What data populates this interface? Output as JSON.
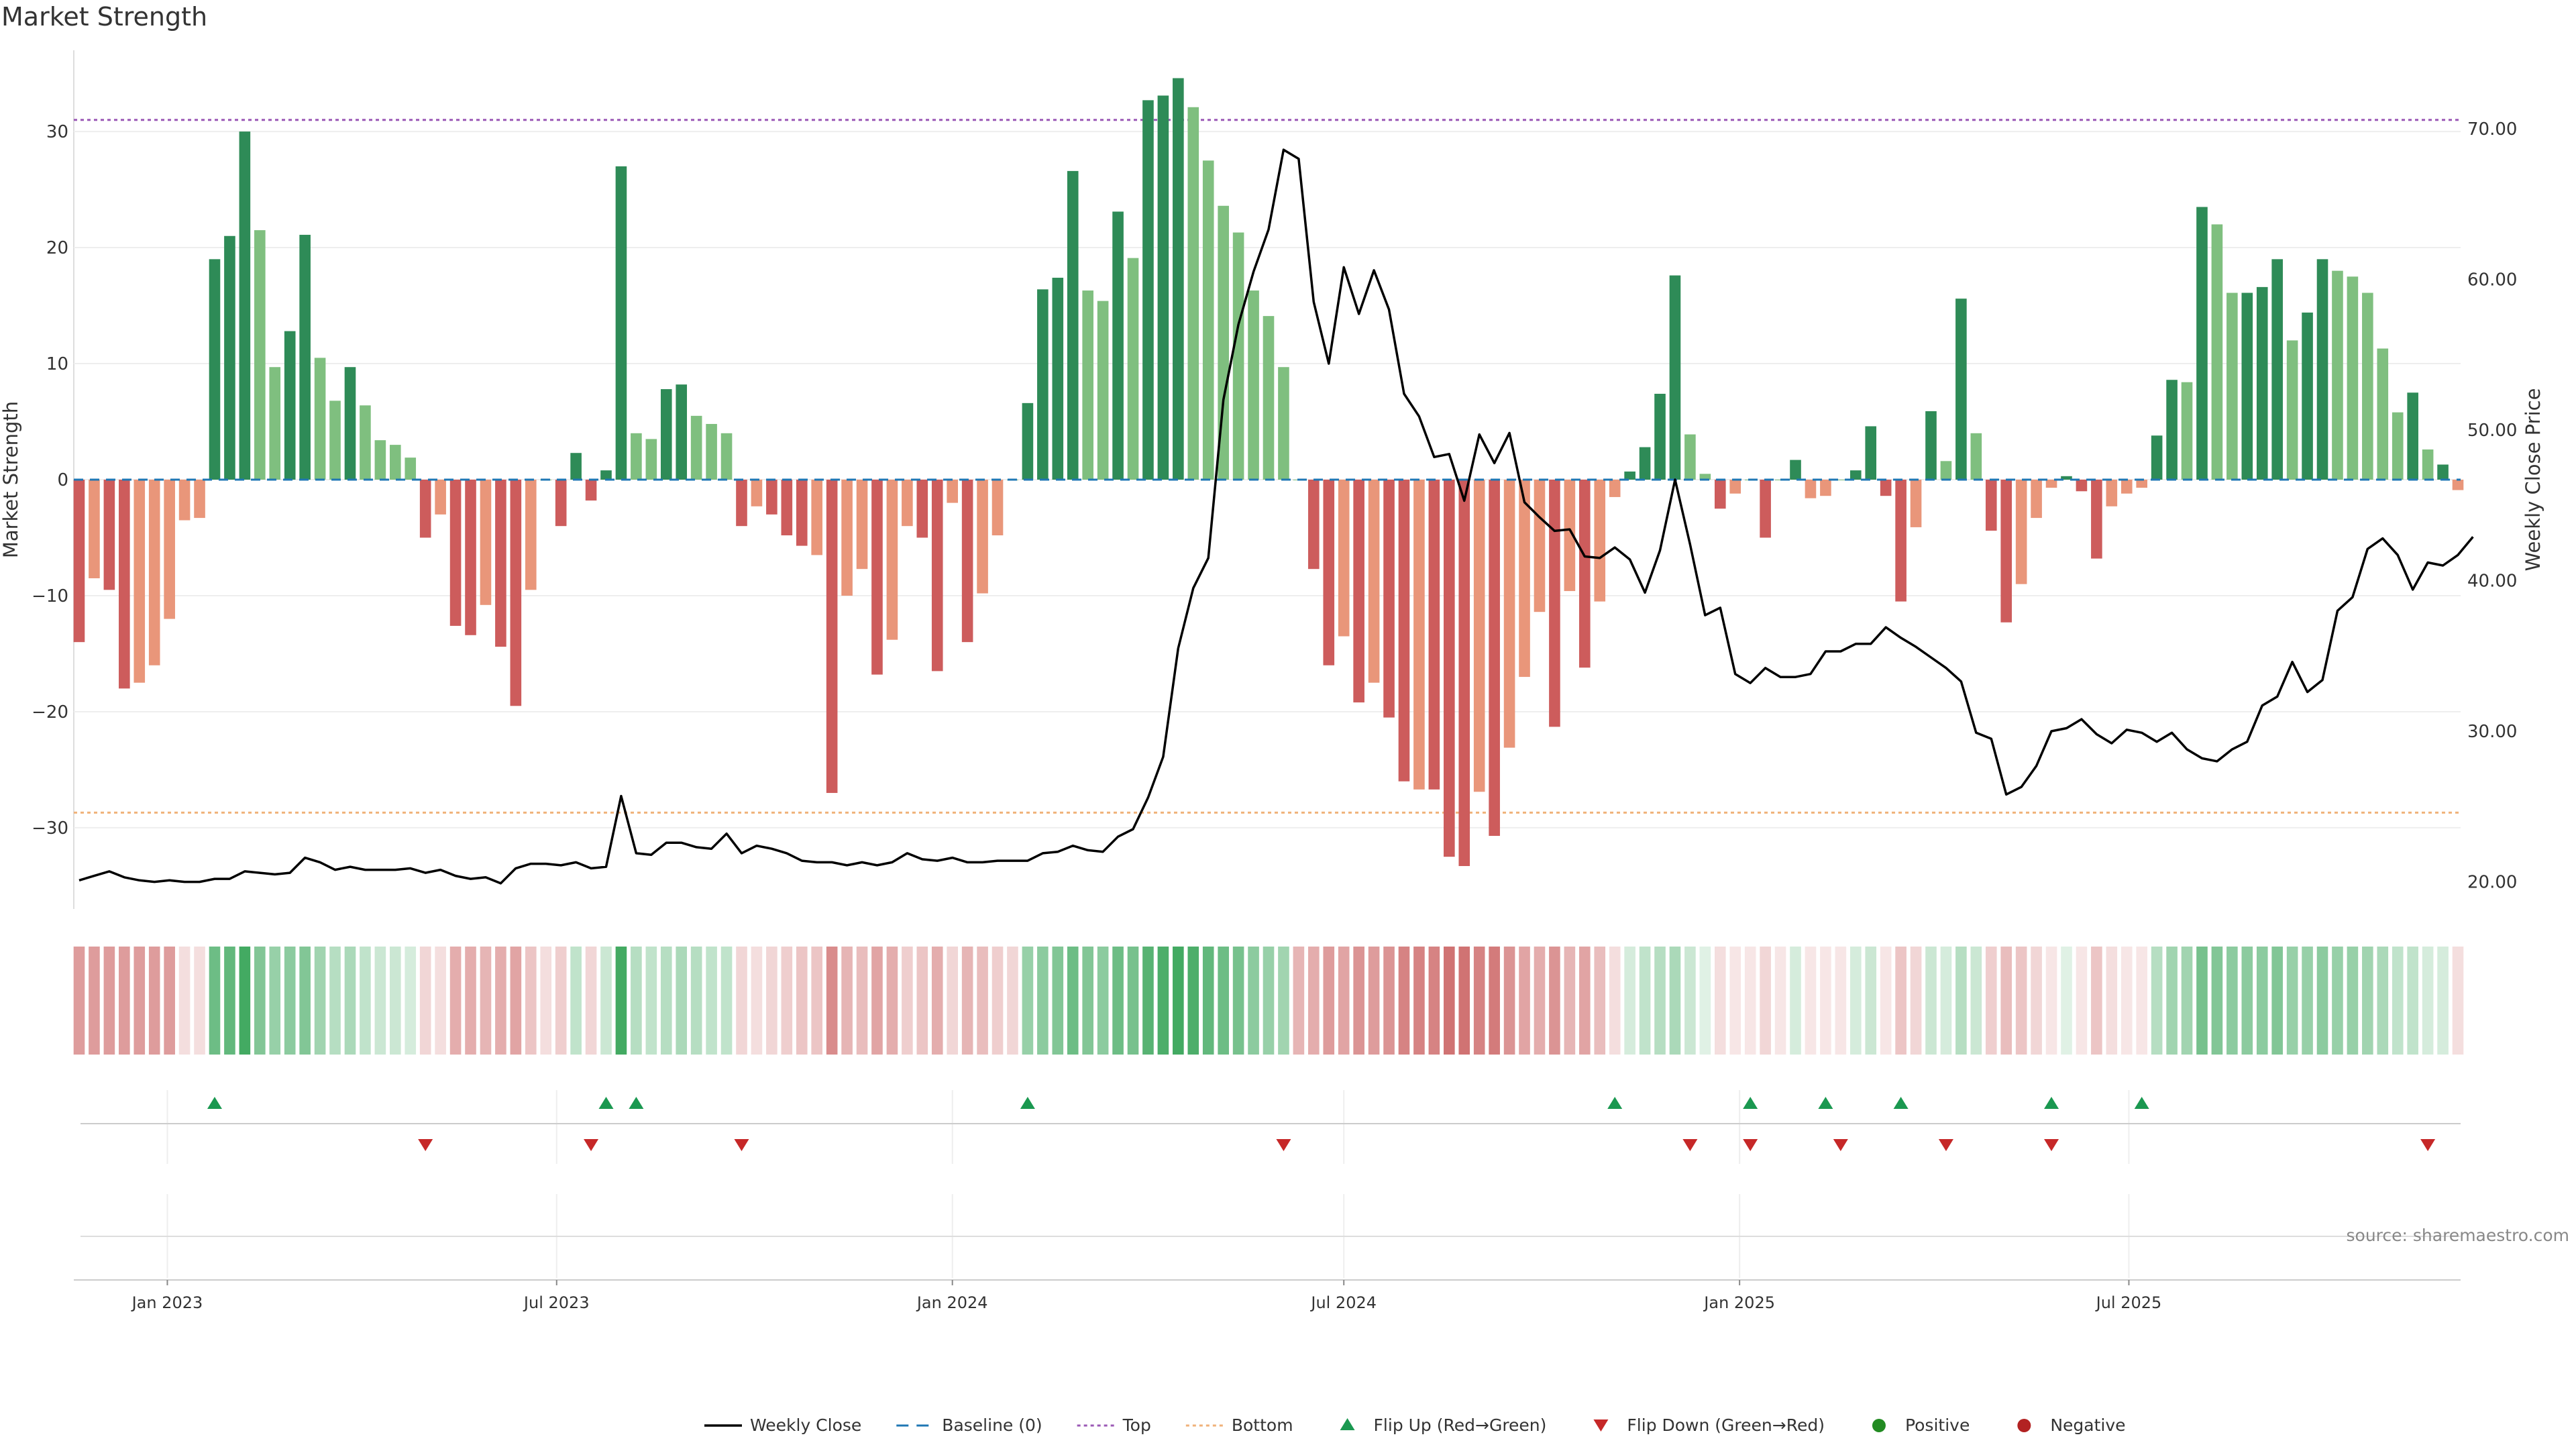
{
  "title": "Market Strength",
  "source": "source: sharemaestro.com",
  "colors": {
    "strong_green": "#2e8b57",
    "light_green": "#7fbf7f",
    "strong_red": "#cd5c5c",
    "light_red": "#e9967a",
    "baseline": "#1f77b4",
    "top": "#9b59b6",
    "bottom": "#f0b27a",
    "flip_up": "#1a9850",
    "flip_down": "#c62828",
    "positive": "#228b22",
    "negative": "#b22222",
    "price": "#000000"
  },
  "chart_data": {
    "type": "bar",
    "title": "Market Strength",
    "ylabel": "Market Strength",
    "y2label": "Weekly Close Price",
    "ylim": [
      -37,
      37
    ],
    "y2lim": [
      18.2,
      75.2
    ],
    "yticks": [
      -30,
      -20,
      -10,
      0,
      10,
      20,
      30
    ],
    "ytick_labels": [
      "−30",
      "−20",
      "−10",
      "0",
      "10",
      "20",
      "30"
    ],
    "y2ticks": [
      20,
      30,
      40,
      50,
      60,
      70
    ],
    "y2tick_labels": [
      "20.00",
      "30.00",
      "40.00",
      "50.00",
      "60.00",
      "70.00"
    ],
    "top_line": 31,
    "bottom_line": -28.7,
    "x_start": "2022-11-21",
    "week_step_days": 7,
    "xticks": [
      {
        "label": "Jan 2023",
        "date": "2023-01-01"
      },
      {
        "label": "Jul 2023",
        "date": "2023-07-01"
      },
      {
        "label": "Jan 2024",
        "date": "2024-01-01"
      },
      {
        "label": "Jul 2024",
        "date": "2024-07-01"
      },
      {
        "label": "Jan 2025",
        "date": "2025-01-01"
      },
      {
        "label": "Jul 2025",
        "date": "2025-07-01"
      }
    ],
    "strength": [
      -14,
      -8.5,
      -9.5,
      -18,
      -17.5,
      -16,
      -12,
      -3.5,
      -3.3,
      19,
      21,
      30,
      21.5,
      9.7,
      12.8,
      21.1,
      10.5,
      6.8,
      9.7,
      6.4,
      3.4,
      3,
      1.9,
      -5,
      -3,
      -12.6,
      -13.4,
      -10.8,
      -14.4,
      -19.5,
      -9.5,
      0,
      -4,
      2.3,
      -1.8,
      0.8,
      27,
      4,
      3.5,
      7.8,
      8.2,
      5.5,
      4.8,
      4,
      -4,
      -2.3,
      -3,
      -4.8,
      -5.7,
      -6.5,
      -27,
      -10,
      -7.7,
      -16.8,
      -13.8,
      -4,
      -5,
      -16.5,
      -2,
      -14,
      -9.8,
      -4.8,
      0,
      6.6,
      16.4,
      17.4,
      26.6,
      16.3,
      15.4,
      23.1,
      19.1,
      32.7,
      33.1,
      34.6,
      32.1,
      27.5,
      23.6,
      21.3,
      16.3,
      14.1,
      9.7,
      0,
      -7.7,
      -16,
      -13.5,
      -19.2,
      -17.5,
      -20.5,
      -26,
      -26.7,
      -26.7,
      -32.5,
      -33.3,
      -26.9,
      -30.7,
      -23.1,
      -17,
      -11.4,
      -21.3,
      -9.6,
      -16.2,
      -10.5,
      -1.5,
      0.7,
      2.8,
      7.4,
      17.6,
      3.9,
      0.5,
      -2.5,
      -1.2,
      0,
      -5,
      0,
      1.7,
      -1.6,
      -1.4,
      0,
      0.8,
      4.6,
      -1.4,
      -10.5,
      -4.1,
      5.9,
      1.6,
      15.6,
      4,
      -4.4,
      -12.3,
      -9,
      -3.3,
      -0.7,
      0.3,
      -1,
      -6.8,
      -2.3,
      -1.2,
      -0.7,
      3.8,
      8.6,
      8.4,
      23.5,
      22,
      16.1,
      16.1,
      16.6,
      19,
      12,
      14.4,
      19,
      18,
      17.5,
      16.1,
      11.3,
      5.8,
      7.5,
      2.6,
      1.3,
      -0.9
    ],
    "strength_shade": [
      "strong",
      "light",
      "strong",
      "strong",
      "light",
      "light",
      "light",
      "light",
      "light",
      "strong",
      "strong",
      "strong",
      "light",
      "light",
      "strong",
      "strong",
      "light",
      "light",
      "strong",
      "light",
      "light",
      "light",
      "light",
      "strong",
      "light",
      "strong",
      "strong",
      "light",
      "strong",
      "strong",
      "light",
      "light",
      "strong",
      "strong",
      "strong",
      "strong",
      "strong",
      "light",
      "light",
      "strong",
      "strong",
      "light",
      "light",
      "light",
      "strong",
      "light",
      "strong",
      "strong",
      "strong",
      "light",
      "strong",
      "light",
      "light",
      "strong",
      "light",
      "light",
      "strong",
      "strong",
      "light",
      "strong",
      "light",
      "light",
      "light",
      "strong",
      "strong",
      "strong",
      "strong",
      "light",
      "light",
      "strong",
      "light",
      "strong",
      "strong",
      "strong",
      "light",
      "light",
      "light",
      "light",
      "light",
      "light",
      "light",
      "light",
      "strong",
      "strong",
      "light",
      "strong",
      "light",
      "strong",
      "strong",
      "light",
      "strong",
      "strong",
      "strong",
      "light",
      "strong",
      "light",
      "light",
      "light",
      "strong",
      "light",
      "strong",
      "light",
      "light",
      "strong",
      "strong",
      "strong",
      "strong",
      "light",
      "light",
      "strong",
      "light",
      "light",
      "strong",
      "light",
      "strong",
      "light",
      "light",
      "light",
      "strong",
      "strong",
      "strong",
      "strong",
      "light",
      "strong",
      "light",
      "strong",
      "light",
      "strong",
      "strong",
      "light",
      "light",
      "light",
      "strong",
      "strong",
      "strong",
      "light",
      "light",
      "light",
      "strong",
      "strong",
      "light",
      "strong",
      "light",
      "light",
      "strong",
      "strong",
      "strong",
      "light",
      "strong",
      "strong",
      "light",
      "light",
      "light",
      "light",
      "light",
      "strong",
      "light",
      "strong"
    ],
    "price": [
      20.1,
      20.4,
      20.7,
      20.3,
      20.1,
      20,
      20.1,
      20,
      20,
      20.2,
      20.2,
      20.7,
      20.6,
      20.5,
      20.6,
      21.6,
      21.3,
      20.8,
      21,
      20.8,
      20.8,
      20.8,
      20.9,
      20.6,
      20.8,
      20.4,
      20.2,
      20.3,
      19.9,
      20.9,
      21.2,
      21.2,
      21.1,
      21.3,
      20.9,
      21,
      25.7,
      21.9,
      21.8,
      22.6,
      22.6,
      22.3,
      22.2,
      23.2,
      21.9,
      22.4,
      22.2,
      21.9,
      21.4,
      21.3,
      21.3,
      21.1,
      21.3,
      21.1,
      21.3,
      21.9,
      21.5,
      21.4,
      21.6,
      21.3,
      21.3,
      21.4,
      21.4,
      21.4,
      21.9,
      22,
      22.4,
      22.1,
      22,
      23,
      23.5,
      25.6,
      28.3,
      35.5,
      39.5,
      41.5,
      52,
      57,
      60.5,
      63.3,
      68.6,
      68,
      58.5,
      54.4,
      60.8,
      57.7,
      60.6,
      58,
      52.4,
      50.9,
      48.2,
      48.4,
      45.3,
      49.7,
      47.8,
      49.8,
      45.2,
      44.2,
      43.3,
      43.4,
      41.6,
      41.5,
      42.2,
      41.4,
      39.2,
      42,
      46.7,
      42.4,
      37.7,
      38.2,
      33.8,
      33.2,
      34.2,
      33.6,
      33.6,
      33.8,
      35.3,
      35.3,
      35.8,
      35.8,
      36.9,
      36.2,
      35.6,
      34.9,
      34.2,
      33.3,
      29.9,
      29.5,
      25.8,
      26.3,
      27.7,
      30,
      30.2,
      30.8,
      29.8,
      29.2,
      30.1,
      29.9,
      29.3,
      29.9,
      28.8,
      28.2,
      28,
      28.8,
      29.3,
      31.7,
      32.3,
      34.6,
      32.6,
      33.4,
      38,
      38.9,
      42.1,
      42.8,
      41.7,
      39.4,
      41.2,
      41,
      41.7,
      42.9
    ],
    "heat_strip": [
      -0.6,
      -0.6,
      -0.6,
      -0.6,
      -0.6,
      -0.6,
      -0.6,
      -0.2,
      -0.2,
      0.7,
      0.75,
      0.9,
      0.6,
      0.5,
      0.55,
      0.6,
      0.45,
      0.35,
      0.4,
      0.3,
      0.25,
      0.25,
      0.2,
      -0.25,
      -0.2,
      -0.5,
      -0.5,
      -0.45,
      -0.5,
      -0.55,
      -0.35,
      -0.2,
      -0.3,
      0.3,
      -0.25,
      0.25,
      0.9,
      0.35,
      0.3,
      0.35,
      0.4,
      0.35,
      0.3,
      0.3,
      -0.25,
      -0.2,
      -0.25,
      -0.3,
      -0.35,
      -0.35,
      -0.7,
      -0.45,
      -0.4,
      -0.55,
      -0.5,
      -0.3,
      -0.35,
      -0.5,
      -0.25,
      -0.45,
      -0.4,
      -0.3,
      -0.25,
      0.5,
      0.55,
      0.6,
      0.7,
      0.6,
      0.55,
      0.7,
      0.65,
      0.8,
      0.85,
      0.9,
      0.85,
      0.75,
      0.7,
      0.65,
      0.55,
      0.5,
      0.45,
      -0.45,
      -0.5,
      -0.6,
      -0.55,
      -0.65,
      -0.6,
      -0.65,
      -0.75,
      -0.75,
      -0.75,
      -0.85,
      -0.85,
      -0.75,
      -0.8,
      -0.65,
      -0.55,
      -0.5,
      -0.65,
      -0.45,
      -0.55,
      -0.4,
      -0.2,
      0.2,
      0.3,
      0.35,
      0.4,
      0.25,
      0.15,
      -0.2,
      -0.15,
      -0.15,
      -0.25,
      -0.15,
      0.2,
      -0.15,
      -0.15,
      -0.15,
      0.2,
      0.25,
      -0.15,
      -0.35,
      -0.25,
      0.25,
      0.2,
      0.35,
      0.25,
      -0.3,
      -0.4,
      -0.35,
      -0.25,
      -0.15,
      0.15,
      -0.15,
      -0.35,
      -0.2,
      -0.15,
      -0.15,
      0.35,
      0.45,
      0.45,
      0.65,
      0.6,
      0.55,
      0.55,
      0.55,
      0.6,
      0.5,
      0.5,
      0.55,
      0.5,
      0.5,
      0.45,
      0.4,
      0.3,
      0.3,
      0.2,
      0.2,
      -0.2
    ],
    "flip_up_weeks": [
      9,
      35,
      37,
      63,
      102,
      111,
      116,
      121,
      131,
      137
    ],
    "flip_down_weeks": [
      23,
      34,
      44,
      80,
      107,
      111,
      117,
      124,
      131,
      156
    ],
    "legend": [
      {
        "key": "price",
        "label": "Weekly Close"
      },
      {
        "key": "baseline",
        "label": "Baseline (0)"
      },
      {
        "key": "top",
        "label": "Top"
      },
      {
        "key": "bottom",
        "label": "Bottom"
      },
      {
        "key": "flip_up",
        "label": "Flip Up (Red→Green)"
      },
      {
        "key": "flip_down",
        "label": "Flip Down (Green→Red)"
      },
      {
        "key": "positive",
        "label": "Positive"
      },
      {
        "key": "negative",
        "label": "Negative"
      }
    ]
  }
}
